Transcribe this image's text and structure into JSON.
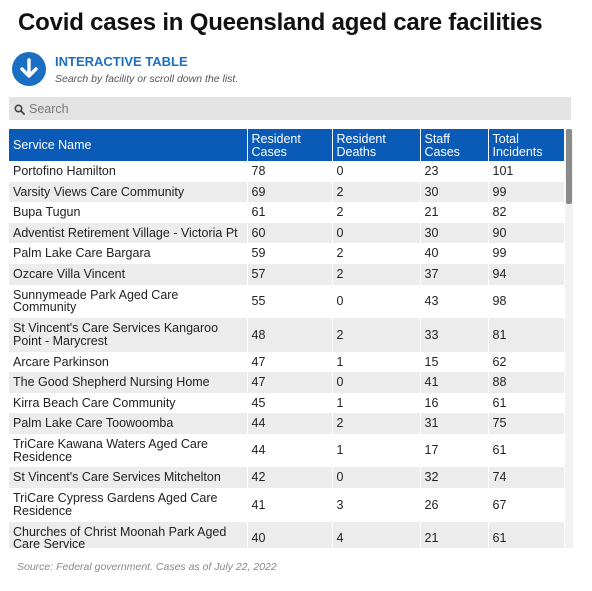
{
  "title": "Covid cases in Queensland aged care facilities",
  "banner": {
    "icon": "arrow-down-circle-icon",
    "label": "INTERACTIVE TABLE",
    "subtitle": "Search by facility or scroll down the list."
  },
  "search": {
    "icon": "search-icon",
    "placeholder": "Search",
    "value": ""
  },
  "colors": {
    "header_bg": "#0a5bb8",
    "accent": "#1a6fc2",
    "row_alt": "#ececec"
  },
  "table": {
    "columns": [
      {
        "label_line1": "Service Name",
        "label_line2": ""
      },
      {
        "label_line1": "Resident",
        "label_line2": "Cases"
      },
      {
        "label_line1": "Resident",
        "label_line2": "Deaths"
      },
      {
        "label_line1": "Staff",
        "label_line2": "Cases"
      },
      {
        "label_line1": "Total",
        "label_line2": "Incidents"
      }
    ],
    "rows": [
      {
        "name_line1": "Portofino Hamilton",
        "name_line2": "",
        "resident_cases": "78",
        "resident_deaths": "0",
        "staff_cases": "23",
        "total_incidents": "101"
      },
      {
        "name_line1": "Varsity Views Care Community",
        "name_line2": "",
        "resident_cases": "69",
        "resident_deaths": "2",
        "staff_cases": "30",
        "total_incidents": "99"
      },
      {
        "name_line1": "Bupa Tugun",
        "name_line2": "",
        "resident_cases": "61",
        "resident_deaths": "2",
        "staff_cases": "21",
        "total_incidents": "82"
      },
      {
        "name_line1": "Adventist Retirement Village - Victoria Pt",
        "name_line2": "",
        "resident_cases": "60",
        "resident_deaths": "0",
        "staff_cases": "30",
        "total_incidents": "90"
      },
      {
        "name_line1": "Palm Lake Care Bargara",
        "name_line2": "",
        "resident_cases": "59",
        "resident_deaths": "2",
        "staff_cases": "40",
        "total_incidents": "99"
      },
      {
        "name_line1": "Ozcare Villa Vincent",
        "name_line2": "",
        "resident_cases": "57",
        "resident_deaths": "2",
        "staff_cases": "37",
        "total_incidents": "94"
      },
      {
        "name_line1": "Sunnymeade Park Aged Care",
        "name_line2": "Community",
        "resident_cases": "55",
        "resident_deaths": "0",
        "staff_cases": "43",
        "total_incidents": "98"
      },
      {
        "name_line1": "St Vincent's Care Services Kangaroo",
        "name_line2": "Point - Marycrest",
        "resident_cases": "48",
        "resident_deaths": "2",
        "staff_cases": "33",
        "total_incidents": "81"
      },
      {
        "name_line1": "Arcare Parkinson",
        "name_line2": "",
        "resident_cases": "47",
        "resident_deaths": "1",
        "staff_cases": "15",
        "total_incidents": "62"
      },
      {
        "name_line1": "The Good Shepherd Nursing Home",
        "name_line2": "",
        "resident_cases": "47",
        "resident_deaths": "0",
        "staff_cases": "41",
        "total_incidents": "88"
      },
      {
        "name_line1": "Kirra Beach Care Community",
        "name_line2": "",
        "resident_cases": "45",
        "resident_deaths": "1",
        "staff_cases": "16",
        "total_incidents": "61"
      },
      {
        "name_line1": "Palm Lake Care Toowoomba",
        "name_line2": "",
        "resident_cases": "44",
        "resident_deaths": "2",
        "staff_cases": "31",
        "total_incidents": "75"
      },
      {
        "name_line1": "TriCare Kawana Waters Aged Care",
        "name_line2": "Residence",
        "resident_cases": "44",
        "resident_deaths": "1",
        "staff_cases": "17",
        "total_incidents": "61"
      },
      {
        "name_line1": "St Vincent's Care Services Mitchelton",
        "name_line2": "",
        "resident_cases": "42",
        "resident_deaths": "0",
        "staff_cases": "32",
        "total_incidents": "74"
      },
      {
        "name_line1": "TriCare Cypress Gardens Aged Care",
        "name_line2": "Residence",
        "resident_cases": "41",
        "resident_deaths": "3",
        "staff_cases": "26",
        "total_incidents": "67"
      },
      {
        "name_line1": "Churches of Christ Moonah Park Aged",
        "name_line2": "Care Service",
        "resident_cases": "40",
        "resident_deaths": "4",
        "staff_cases": "21",
        "total_incidents": "61"
      }
    ]
  },
  "source": "Source: Federal government. Cases as of July 22, 2022"
}
